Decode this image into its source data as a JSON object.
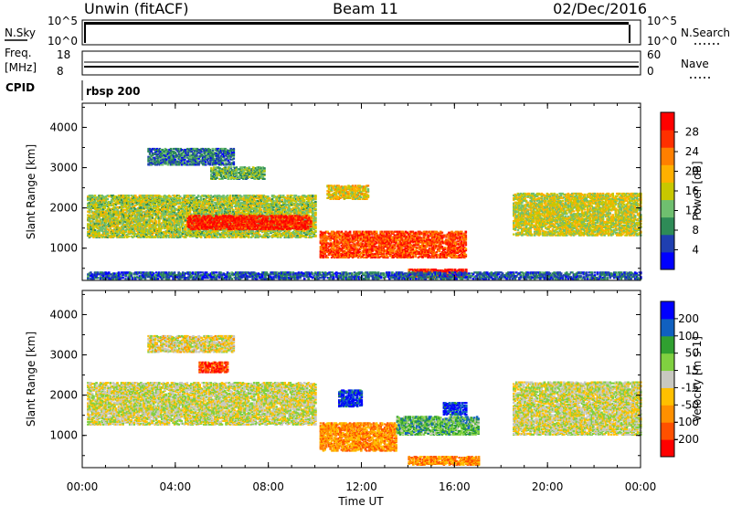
{
  "header": {
    "station": "Unwin (fitACF)",
    "beam": "Beam 11",
    "date": "02/Dec/2016"
  },
  "status_panels": {
    "nsky_label": "N.Sky",
    "nsky_ticks": [
      "10^5",
      "10^0"
    ],
    "nsearch_label": "N.Search",
    "freq_label_line1": "Freq.",
    "freq_label_line2": "[MHz]",
    "freq_ticks": [
      "18",
      "8"
    ],
    "nave_label": "Nave",
    "nave_ticks": [
      "60",
      "0"
    ],
    "cpid_label": "CPID",
    "cpid_value": "rbsp 200"
  },
  "colors": {
    "power_scale": [
      "#0000ff",
      "#1f3fb0",
      "#2e8b57",
      "#6fbf6f",
      "#c8c800",
      "#ffb000",
      "#ff7f00",
      "#ff3000",
      "#ff0000"
    ],
    "velocity_scale": [
      "#ff0000",
      "#ff5000",
      "#ff9000",
      "#ffc000",
      "#c8c8c0",
      "#80d040",
      "#30a030",
      "#1060c0",
      "#0000ff"
    ]
  },
  "chart_data": [
    {
      "type": "heatmap",
      "title": "",
      "xlabel": "Time UT",
      "ylabel": "Slant Range [km]",
      "x_ticks": [
        "00:00",
        "04:00",
        "08:00",
        "12:00",
        "16:00",
        "20:00",
        "00:00"
      ],
      "y_ticks": [
        "4000",
        "3000",
        "2000",
        "1000"
      ],
      "ylim": [
        200,
        4600
      ],
      "colorbar_label": "Power [dB]",
      "colorbar_ticks": [
        "28",
        "24",
        "20",
        "16",
        "12",
        "8",
        "4"
      ],
      "regions": [
        {
          "t0": 0.2,
          "t1": 10.0,
          "r0": 1250,
          "r1": 2300,
          "level": 0.45
        },
        {
          "t0": 4.5,
          "t1": 9.8,
          "r0": 1450,
          "r1": 1800,
          "level": 0.95
        },
        {
          "t0": 2.8,
          "t1": 6.5,
          "r0": 3050,
          "r1": 3450,
          "level": 0.2
        },
        {
          "t0": 5.5,
          "t1": 7.8,
          "r0": 2700,
          "r1": 3000,
          "level": 0.35
        },
        {
          "t0": 10.2,
          "t1": 16.5,
          "r0": 750,
          "r1": 1400,
          "level": 0.85
        },
        {
          "t0": 10.5,
          "t1": 12.3,
          "r0": 2200,
          "r1": 2550,
          "level": 0.55
        },
        {
          "t0": 14.0,
          "t1": 16.5,
          "r0": 250,
          "r1": 450,
          "level": 0.9
        },
        {
          "t0": 18.5,
          "t1": 24.0,
          "r0": 1300,
          "r1": 2350,
          "level": 0.5
        },
        {
          "t0": 0.2,
          "t1": 24.0,
          "r0": 220,
          "r1": 380,
          "level": 0.15
        }
      ]
    },
    {
      "type": "heatmap",
      "title": "",
      "xlabel": "Time UT",
      "ylabel": "Slant Range [km]",
      "x_ticks": [
        "00:00",
        "04:00",
        "08:00",
        "12:00",
        "16:00",
        "20:00",
        "00:00"
      ],
      "y_ticks": [
        "4000",
        "3000",
        "2000",
        "1000"
      ],
      "ylim": [
        200,
        4600
      ],
      "colorbar_label": "Velocity [m s-1]",
      "colorbar_ticks": [
        "200",
        "100",
        "50",
        "15",
        "-15",
        "-50",
        "-100",
        "-200"
      ],
      "regions": [
        {
          "t0": 0.2,
          "t1": 10.0,
          "r0": 1250,
          "r1": 2300,
          "level": 0.5
        },
        {
          "t0": 2.8,
          "t1": 6.5,
          "r0": 3050,
          "r1": 3450,
          "level": 0.45
        },
        {
          "t0": 5.0,
          "t1": 6.2,
          "r0": 2550,
          "r1": 2800,
          "level": 0.05
        },
        {
          "t0": 10.2,
          "t1": 13.5,
          "r0": 600,
          "r1": 1300,
          "level": 0.25
        },
        {
          "t0": 13.5,
          "t1": 17.0,
          "r0": 1000,
          "r1": 1450,
          "level": 0.7
        },
        {
          "t0": 15.5,
          "t1": 16.5,
          "r0": 1500,
          "r1": 1800,
          "level": 0.95
        },
        {
          "t0": 11.0,
          "t1": 12.0,
          "r0": 1700,
          "r1": 2100,
          "level": 0.95
        },
        {
          "t0": 14.0,
          "t1": 17.0,
          "r0": 250,
          "r1": 450,
          "level": 0.25
        },
        {
          "t0": 18.5,
          "t1": 24.0,
          "r0": 1000,
          "r1": 2300,
          "level": 0.5
        }
      ]
    }
  ]
}
